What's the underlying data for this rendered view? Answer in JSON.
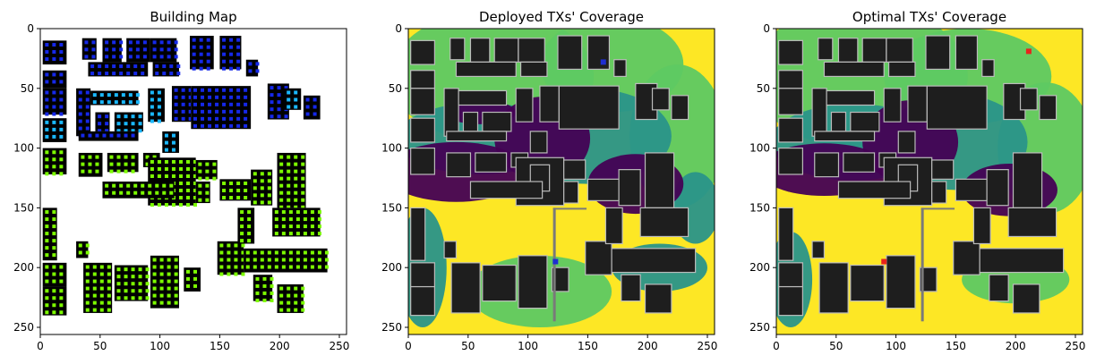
{
  "chart_data": [
    {
      "type": "heatmap",
      "title": "Building Map",
      "xlim": [
        0,
        256
      ],
      "ylim": [
        256,
        0
      ],
      "xticks": [
        0,
        50,
        100,
        150,
        200,
        250
      ],
      "yticks": [
        0,
        50,
        100,
        150,
        200,
        250
      ],
      "colors": {
        "background": "#ffffff",
        "building": "#000000",
        "tx_blue": "#1528e8",
        "tx_cyan": "#1ab8ff",
        "tx_green": "#7cfc00"
      }
    },
    {
      "type": "heatmap",
      "title": "Deployed TXs' Coverage",
      "xlim": [
        0,
        256
      ],
      "ylim": [
        256,
        0
      ],
      "xticks": [
        0,
        50,
        100,
        150,
        200,
        250
      ],
      "yticks": [
        0,
        50,
        100,
        150,
        200,
        250
      ],
      "colors": {
        "low": "#440154",
        "mid_low": "#2a9489",
        "mid_high": "#5ec962",
        "high": "#fde725",
        "building": "#1e1e1e"
      },
      "tx_points": [
        {
          "x": 123,
          "y": 195,
          "color": "#1e2dd2"
        },
        {
          "x": 163,
          "y": 28,
          "color": "#1e2dd2"
        }
      ]
    },
    {
      "type": "heatmap",
      "title": "Optimal TXs' Coverage",
      "xlim": [
        0,
        256
      ],
      "ylim": [
        256,
        0
      ],
      "xticks": [
        0,
        50,
        100,
        150,
        200,
        250
      ],
      "yticks": [
        0,
        50,
        100,
        150,
        200,
        250
      ],
      "colors": {
        "low": "#440154",
        "mid_low": "#2a9489",
        "mid_high": "#5ec962",
        "high": "#fde725",
        "building": "#1e1e1e"
      },
      "tx_points": [
        {
          "x": 90,
          "y": 195,
          "color": "#e8231c"
        },
        {
          "x": 211,
          "y": 19,
          "color": "#e8231c"
        }
      ]
    }
  ]
}
